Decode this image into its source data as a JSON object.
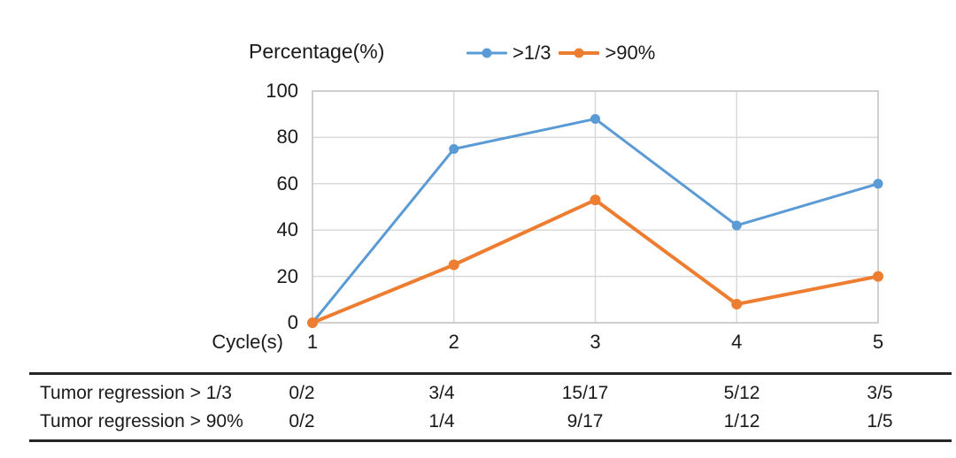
{
  "chart_data": {
    "type": "line",
    "title": "Percentage(%)",
    "xlabel": "Cycle(s)",
    "categories": [
      "1",
      "2",
      "3",
      "4",
      "5"
    ],
    "series": [
      {
        "name": ">1/3",
        "color": "#5B9BD5",
        "line_width": 3,
        "marker_radius": 5.5,
        "values": [
          0,
          75,
          88,
          42,
          60
        ]
      },
      {
        "name": ">90%",
        "color": "#ED7D31",
        "line_width": 4,
        "marker_radius": 6,
        "values": [
          0,
          25,
          53,
          8,
          20
        ]
      }
    ],
    "ylim": [
      0,
      100
    ],
    "yticks": [
      0,
      20,
      40,
      60,
      80,
      100
    ],
    "grid": true,
    "grid_color": "#D9D9D9",
    "border_color": "#BFBFBF",
    "legend_position": "top"
  },
  "table": {
    "rows": [
      {
        "label": "Tumor regression > 1/3",
        "values": [
          "0/2",
          "3/4",
          "15/17",
          "5/12",
          "3/5"
        ]
      },
      {
        "label": "Tumor regression > 90%",
        "values": [
          "0/2",
          "1/4",
          "9/17",
          "1/12",
          "1/5"
        ]
      }
    ]
  }
}
